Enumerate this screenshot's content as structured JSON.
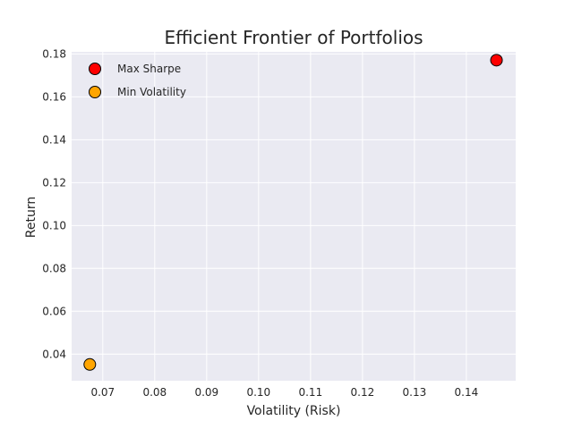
{
  "chart_data": {
    "type": "scatter",
    "title": "Efficient Frontier of Portfolios",
    "xlabel": "Volatility (Risk)",
    "ylabel": "Return",
    "xlim": [
      0.064,
      0.1495
    ],
    "ylim": [
      0.0276,
      0.181
    ],
    "xticks": [
      0.07,
      0.08,
      0.09,
      0.1,
      0.11,
      0.12,
      0.13,
      0.14
    ],
    "xtick_labels": [
      "0.07",
      "0.08",
      "0.09",
      "0.10",
      "0.11",
      "0.12",
      "0.13",
      "0.14"
    ],
    "yticks": [
      0.04,
      0.06,
      0.08,
      0.1,
      0.12,
      0.14,
      0.16,
      0.18
    ],
    "ytick_labels": [
      "0.04",
      "0.06",
      "0.08",
      "0.10",
      "0.12",
      "0.14",
      "0.16",
      "0.18"
    ],
    "grid": true,
    "legend_position": "top-left",
    "background_color": "#eaeaf2",
    "grid_color": "#ffffff",
    "series": [
      {
        "name": "Max Sharpe",
        "color": "#ff0000",
        "points": [
          {
            "x": 0.1458,
            "y": 0.1771
          }
        ]
      },
      {
        "name": "Min Volatility",
        "color": "#ffa500",
        "points": [
          {
            "x": 0.0675,
            "y": 0.0352
          }
        ]
      }
    ]
  }
}
